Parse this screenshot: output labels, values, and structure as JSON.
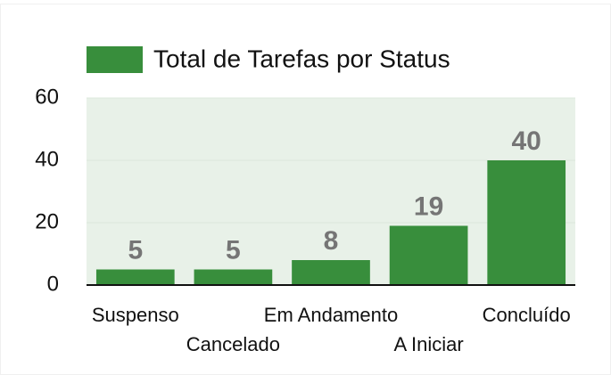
{
  "chart_data": {
    "type": "bar",
    "series": [
      {
        "name": "Total de Tarefas por Status",
        "color": "#388e3c",
        "values": [
          5,
          5,
          8,
          19,
          40
        ]
      }
    ],
    "categories": [
      "Suspenso",
      "Cancelado",
      "Em Andamento",
      "A Iniciar",
      "Concluído"
    ],
    "ylim": [
      0,
      60
    ],
    "yticks": [
      0,
      20,
      40,
      60
    ],
    "grid": true,
    "legend": "top"
  }
}
